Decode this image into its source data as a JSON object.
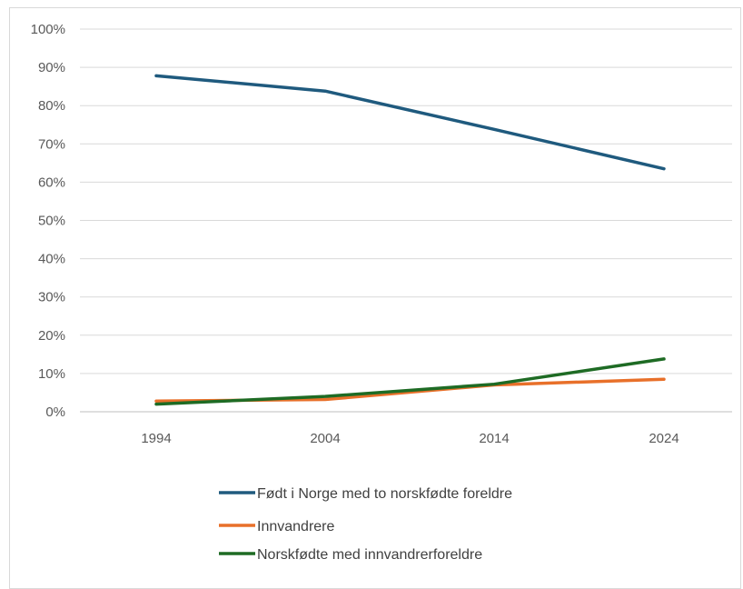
{
  "chart_data": {
    "type": "line",
    "x": [
      "1994",
      "2004",
      "2014",
      "2024"
    ],
    "ylim": [
      0,
      100
    ],
    "yticks": [
      "0%",
      "10%",
      "20%",
      "30%",
      "40%",
      "50%",
      "60%",
      "70%",
      "80%",
      "90%",
      "100%"
    ],
    "grid": true,
    "legend_position": "bottom",
    "series": [
      {
        "name": "Født i Norge med to norskfødte foreldre",
        "color": "#1f5a7e",
        "values": [
          87.8,
          83.8,
          73.8,
          63.5
        ]
      },
      {
        "name": "Innvandrere",
        "color": "#e8702a",
        "values": [
          2.8,
          3.2,
          7.0,
          8.5
        ]
      },
      {
        "name": "Norskfødte med innvandrerforeldre",
        "color": "#1e6b24",
        "values": [
          2.0,
          4.0,
          7.2,
          13.8
        ]
      }
    ]
  }
}
